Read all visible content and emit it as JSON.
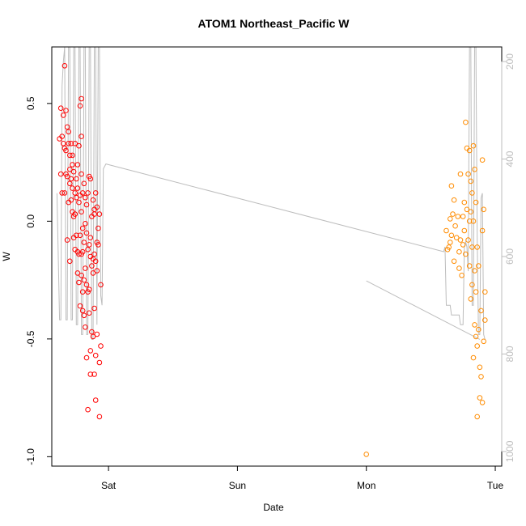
{
  "chart_data": {
    "type": "scatter",
    "title": "ATOM1 Northeast_Pacific W",
    "xlabel": "Date",
    "ylabel": "W",
    "x_unit": "days",
    "xlim": [
      -0.44,
      3.05
    ],
    "ylim": [
      -1.04,
      0.74
    ],
    "x_ticks": [
      {
        "value": 0,
        "label": "Sat"
      },
      {
        "value": 1,
        "label": "Sun"
      },
      {
        "value": 2,
        "label": "Mon"
      },
      {
        "value": 3,
        "label": "Tue"
      }
    ],
    "y_ticks": [
      {
        "value": 0.5,
        "label": "0.5"
      },
      {
        "value": 0.0,
        "label": "0.0"
      },
      {
        "value": -0.5,
        "label": "-0.5"
      },
      {
        "value": -1.0,
        "label": "-1.0"
      }
    ],
    "right_axis": {
      "color": "#bdbdbd",
      "lim_top": 170,
      "lim_bottom": 1030,
      "ticks": [
        200,
        400,
        600,
        800,
        1000
      ]
    },
    "grid": false,
    "legend": "none",
    "series": [
      {
        "color": "#ff0000",
        "marker": "open-circle",
        "points": [
          [
            -0.38,
            0.35
          ],
          [
            -0.37,
            0.48
          ],
          [
            -0.37,
            0.2
          ],
          [
            -0.36,
            0.12
          ],
          [
            -0.36,
            0.36
          ],
          [
            -0.35,
            0.45
          ],
          [
            -0.35,
            0.33
          ],
          [
            -0.34,
            0.66
          ],
          [
            -0.34,
            0.31
          ],
          [
            -0.34,
            0.12
          ],
          [
            -0.33,
            0.47
          ],
          [
            -0.33,
            0.3
          ],
          [
            -0.33,
            0.2
          ],
          [
            -0.32,
            0.4
          ],
          [
            -0.32,
            0.19
          ],
          [
            -0.32,
            -0.08
          ],
          [
            -0.31,
            0.38
          ],
          [
            -0.31,
            0.33
          ],
          [
            -0.31,
            0.08
          ],
          [
            -0.3,
            0.28
          ],
          [
            -0.3,
            0.22
          ],
          [
            -0.3,
            0.16
          ],
          [
            -0.3,
            -0.17
          ],
          [
            -0.29,
            0.33
          ],
          [
            -0.29,
            0.18
          ],
          [
            -0.29,
            0.09
          ],
          [
            -0.28,
            0.28
          ],
          [
            -0.28,
            0.24
          ],
          [
            -0.28,
            0.14
          ],
          [
            -0.28,
            0.04
          ],
          [
            -0.27,
            0.21
          ],
          [
            -0.27,
            0.02
          ],
          [
            -0.27,
            -0.07
          ],
          [
            -0.26,
            0.33
          ],
          [
            -0.26,
            0.12
          ],
          [
            -0.26,
            0.03
          ],
          [
            -0.26,
            -0.12
          ],
          [
            -0.25,
            0.18
          ],
          [
            -0.25,
            0.1
          ],
          [
            -0.25,
            -0.06
          ],
          [
            -0.24,
            0.24
          ],
          [
            -0.24,
            0.14
          ],
          [
            -0.24,
            -0.13
          ],
          [
            -0.24,
            -0.22
          ],
          [
            -0.23,
            0.32
          ],
          [
            -0.23,
            0.08
          ],
          [
            -0.23,
            -0.14
          ],
          [
            -0.23,
            -0.26
          ],
          [
            -0.22,
            0.49
          ],
          [
            -0.22,
            0.11
          ],
          [
            -0.22,
            -0.06
          ],
          [
            -0.22,
            -0.36
          ],
          [
            -0.21,
            0.52
          ],
          [
            -0.21,
            0.36
          ],
          [
            -0.21,
            0.2
          ],
          [
            -0.21,
            0.04
          ],
          [
            -0.21,
            -0.14
          ],
          [
            -0.21,
            -0.23
          ],
          [
            -0.2,
            0.12
          ],
          [
            -0.2,
            -0.03
          ],
          [
            -0.2,
            -0.13
          ],
          [
            -0.2,
            -0.3
          ],
          [
            -0.2,
            -0.38
          ],
          [
            -0.19,
            0.16
          ],
          [
            -0.19,
            -0.09
          ],
          [
            -0.19,
            -0.25
          ],
          [
            -0.19,
            -0.4
          ],
          [
            -0.18,
            0.1
          ],
          [
            -0.18,
            -0.01
          ],
          [
            -0.18,
            -0.2
          ],
          [
            -0.18,
            -0.45
          ],
          [
            -0.17,
            0.07
          ],
          [
            -0.17,
            -0.05
          ],
          [
            -0.17,
            -0.27
          ],
          [
            -0.17,
            -0.58
          ],
          [
            -0.16,
            0.12
          ],
          [
            -0.16,
            -0.12
          ],
          [
            -0.16,
            -0.3
          ],
          [
            -0.16,
            -0.8
          ],
          [
            -0.15,
            0.19
          ],
          [
            -0.15,
            -0.1
          ],
          [
            -0.15,
            -0.29
          ],
          [
            -0.15,
            -0.39
          ],
          [
            -0.14,
            0.18
          ],
          [
            -0.14,
            -0.07
          ],
          [
            -0.14,
            -0.15
          ],
          [
            -0.14,
            -0.55
          ],
          [
            -0.14,
            -0.65
          ],
          [
            -0.13,
            0.02
          ],
          [
            -0.13,
            -0.19
          ],
          [
            -0.13,
            -0.47
          ],
          [
            -0.12,
            0.09
          ],
          [
            -0.12,
            -0.16
          ],
          [
            -0.12,
            -0.22
          ],
          [
            -0.12,
            -0.49
          ],
          [
            -0.11,
            0.05
          ],
          [
            -0.11,
            0.03
          ],
          [
            -0.11,
            -0.14
          ],
          [
            -0.11,
            -0.37
          ],
          [
            -0.11,
            -0.65
          ],
          [
            -0.1,
            0.12
          ],
          [
            -0.1,
            -0.17
          ],
          [
            -0.1,
            -0.57
          ],
          [
            -0.1,
            -0.76
          ],
          [
            -0.09,
            0.06
          ],
          [
            -0.09,
            -0.09
          ],
          [
            -0.09,
            -0.21
          ],
          [
            -0.09,
            -0.48
          ],
          [
            -0.08,
            -0.03
          ],
          [
            -0.08,
            -0.1
          ],
          [
            -0.07,
            0.03
          ],
          [
            -0.07,
            -0.6
          ],
          [
            -0.07,
            -0.83
          ],
          [
            -0.06,
            -0.27
          ],
          [
            -0.06,
            -0.53
          ]
        ]
      },
      {
        "color": "#ff8c00",
        "marker": "open-circle",
        "points": [
          [
            2.62,
            -0.04
          ],
          [
            2.63,
            -0.12
          ],
          [
            2.64,
            -0.11
          ],
          [
            2.65,
            -0.09
          ],
          [
            2.65,
            0.01
          ],
          [
            2.66,
            0.15
          ],
          [
            2.66,
            -0.06
          ],
          [
            2.67,
            0.03
          ],
          [
            2.68,
            0.09
          ],
          [
            2.68,
            -0.17
          ],
          [
            2.69,
            -0.02
          ],
          [
            2.7,
            -0.07
          ],
          [
            2.71,
            0.02
          ],
          [
            2.72,
            -0.13
          ],
          [
            2.72,
            -0.2
          ],
          [
            2.73,
            0.2
          ],
          [
            2.73,
            -0.08
          ],
          [
            2.74,
            -0.23
          ],
          [
            2.75,
            0.02
          ],
          [
            2.75,
            -0.1
          ],
          [
            2.76,
            0.08
          ],
          [
            2.76,
            -0.04
          ],
          [
            2.77,
            0.42
          ],
          [
            2.77,
            -0.14
          ],
          [
            2.78,
            0.31
          ],
          [
            2.78,
            0.05
          ],
          [
            2.79,
            0.2
          ],
          [
            2.79,
            -0.08
          ],
          [
            2.8,
            0.3
          ],
          [
            2.8,
            0.0
          ],
          [
            2.8,
            -0.19
          ],
          [
            2.81,
            0.17
          ],
          [
            2.81,
            0.04
          ],
          [
            2.81,
            -0.33
          ],
          [
            2.82,
            0.12
          ],
          [
            2.82,
            -0.11
          ],
          [
            2.82,
            -0.27
          ],
          [
            2.83,
            0.32
          ],
          [
            2.83,
            0.0
          ],
          [
            2.83,
            -0.58
          ],
          [
            2.84,
            0.22
          ],
          [
            2.84,
            -0.21
          ],
          [
            2.84,
            -0.44
          ],
          [
            2.85,
            0.08
          ],
          [
            2.85,
            -0.3
          ],
          [
            2.85,
            -0.49
          ],
          [
            2.86,
            -0.11
          ],
          [
            2.86,
            -0.53
          ],
          [
            2.86,
            -0.83
          ],
          [
            2.87,
            -0.19
          ],
          [
            2.87,
            -0.46
          ],
          [
            2.88,
            -0.62
          ],
          [
            2.88,
            -0.75
          ],
          [
            2.89,
            -0.38
          ],
          [
            2.89,
            -0.66
          ],
          [
            2.9,
            0.26
          ],
          [
            2.9,
            -0.04
          ],
          [
            2.9,
            -0.77
          ],
          [
            2.91,
            0.05
          ],
          [
            2.91,
            -0.51
          ],
          [
            2.92,
            -0.3
          ],
          [
            2.92,
            -0.42
          ]
        ]
      },
      {
        "color": "#ff8c00",
        "marker": "open-circle",
        "points": [
          [
            2.0,
            -0.99
          ]
        ]
      }
    ],
    "overlay_line": {
      "color": "#bdbdbd",
      "axis": "right",
      "points": [
        [
          -0.4,
          470
        ],
        [
          -0.38,
          730
        ],
        [
          -0.37,
          730
        ],
        [
          -0.36,
          250
        ],
        [
          -0.35,
          200
        ],
        [
          -0.34,
          170
        ],
        [
          -0.33,
          730
        ],
        [
          -0.32,
          730
        ],
        [
          -0.31,
          170
        ],
        [
          -0.3,
          170
        ],
        [
          -0.29,
          730
        ],
        [
          -0.28,
          730
        ],
        [
          -0.27,
          170
        ],
        [
          -0.26,
          170
        ],
        [
          -0.25,
          740
        ],
        [
          -0.24,
          740
        ],
        [
          -0.23,
          170
        ],
        [
          -0.22,
          170
        ],
        [
          -0.21,
          760
        ],
        [
          -0.2,
          760
        ],
        [
          -0.19,
          170
        ],
        [
          -0.18,
          170
        ],
        [
          -0.17,
          760
        ],
        [
          -0.16,
          760
        ],
        [
          -0.15,
          170
        ],
        [
          -0.14,
          170
        ],
        [
          -0.13,
          770
        ],
        [
          -0.12,
          770
        ],
        [
          -0.11,
          170
        ],
        [
          -0.1,
          170
        ],
        [
          -0.09,
          740
        ],
        [
          -0.08,
          170
        ],
        [
          -0.07,
          170
        ],
        [
          -0.06,
          680
        ],
        [
          -0.05,
          700
        ],
        [
          -0.04,
          420
        ],
        [
          -0.02,
          410
        ],
        [
          2.6,
          590
        ],
        [
          2.61,
          580
        ],
        [
          2.62,
          700
        ],
        [
          2.65,
          700
        ],
        [
          2.66,
          720
        ],
        [
          2.72,
          720
        ],
        [
          2.73,
          740
        ],
        [
          2.75,
          740
        ],
        [
          2.76,
          580
        ],
        [
          2.77,
          570
        ],
        [
          2.78,
          580
        ],
        [
          2.79,
          630
        ],
        [
          2.8,
          170
        ],
        [
          2.81,
          170
        ],
        [
          2.82,
          700
        ],
        [
          2.83,
          700
        ],
        [
          2.84,
          170
        ],
        [
          2.85,
          170
        ],
        [
          2.86,
          560
        ],
        [
          2.87,
          760
        ],
        [
          2.88,
          760
        ],
        [
          2.89,
          480
        ],
        [
          2.9,
          470
        ],
        [
          2.91,
          760
        ],
        [
          2.92,
          770
        ]
      ],
      "extra_segment": [
        [
          2.0,
          650
        ],
        [
          2.88,
          770
        ]
      ]
    }
  }
}
